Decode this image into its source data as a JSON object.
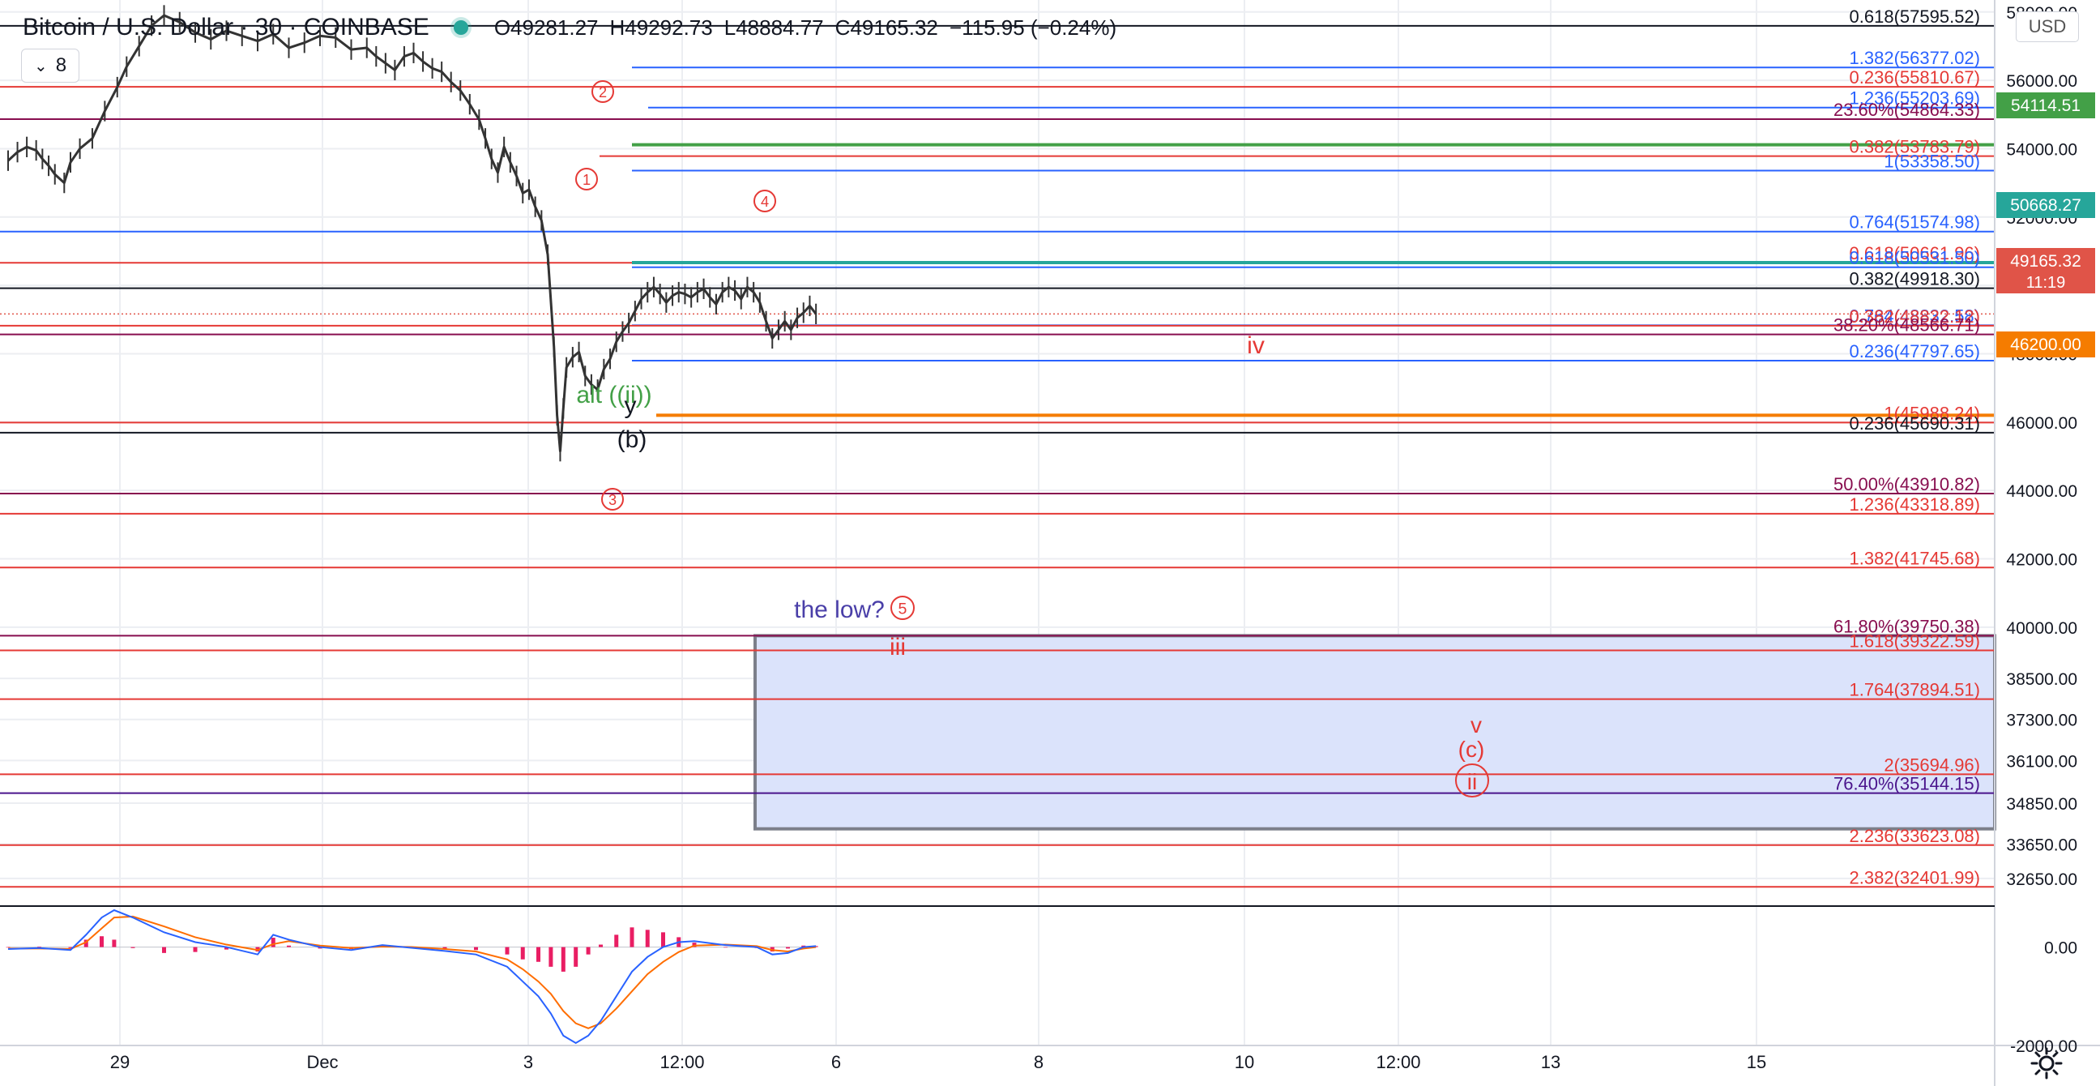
{
  "header": {
    "symbol": "Bitcoin / U.S. Dollar · 30 · COINBASE",
    "open_label": "O",
    "open": "49281.27",
    "high_label": "H",
    "high": "49292.73",
    "low_label": "L",
    "low": "48884.77",
    "close_label": "C",
    "close": "49165.32",
    "change": "−115.95 (−0.24%)",
    "collapse_count": "8"
  },
  "currency": "USD",
  "colors": {
    "red": "#e53935",
    "blue": "#2962ff",
    "maroon": "#880e4f",
    "purple": "#4a148c",
    "black": "#131722",
    "green": "#43a047",
    "orange": "#f57c00",
    "teal": "#26a69a",
    "zone_fill": "#dbe3fb",
    "candle": "#333333",
    "macd": "#2962ff",
    "signal": "#ff6d00",
    "hist": "#e91e63"
  },
  "chart_data": {
    "type": "line",
    "title": "Bitcoin / U.S. Dollar · 30 · COINBASE",
    "ylim": [
      31840,
      58350
    ],
    "y_ticks": [
      58000,
      56000,
      54000,
      52000,
      50000,
      48000,
      46000,
      44000,
      42000,
      40000,
      38500,
      37300,
      36100,
      34850,
      33650,
      32650
    ],
    "x_ticks": [
      "29",
      "Dec",
      "3",
      "12:00",
      "6",
      "8",
      "10",
      "12:00",
      "13",
      "15"
    ],
    "price_markers": [
      {
        "value": "54114.51",
        "color": "#43a047"
      },
      {
        "value": "50668.27",
        "color": "#26a69a"
      },
      {
        "value": "49165.32",
        "sub": "11:19",
        "color": "#e05448"
      },
      {
        "value": "46200.00",
        "color": "#f57c00"
      }
    ],
    "fib_levels": [
      {
        "label": "0.618(57595.52)",
        "price": 57595.52,
        "color": "#131722"
      },
      {
        "label": "1.382(56377.02)",
        "price": 56377.02,
        "color": "#2962ff"
      },
      {
        "label": "0.236(55810.67)",
        "price": 55810.67,
        "color": "#e53935"
      },
      {
        "label": "1.236(55203.69)",
        "price": 55203.69,
        "color": "#2962ff"
      },
      {
        "label": "23.60%(54864.33)",
        "price": 54864.33,
        "color": "#880e4f"
      },
      {
        "label": "0.382(53783.79)",
        "price": 53783.79,
        "color": "#e53935"
      },
      {
        "label": "1(53358.50)",
        "price": 53358.5,
        "color": "#2962ff"
      },
      {
        "label": "0.764(51574.98)",
        "price": 51574.98,
        "color": "#2962ff"
      },
      {
        "label": "0.618(50661.96)",
        "price": 50661.96,
        "color": "#e53935"
      },
      {
        "label": "0.618(50531.50)",
        "price": 50531.5,
        "color": "#2962ff"
      },
      {
        "label": "0.382(49918.30)",
        "price": 49918.3,
        "color": "#131722"
      },
      {
        "label": "0.764(48832.58)",
        "price": 48832.58,
        "color": "#2962ff"
      },
      {
        "label": "0.382(48822.12)",
        "price": 48822.12,
        "color": "#e53935"
      },
      {
        "label": "38.20%(48566.71)",
        "price": 48566.71,
        "color": "#880e4f"
      },
      {
        "label": "0.236(47797.65)",
        "price": 47797.65,
        "color": "#2962ff"
      },
      {
        "label": "1(45988.24)",
        "price": 45988.24,
        "color": "#e53935"
      },
      {
        "label": "0.236(45690.31)",
        "price": 45690.31,
        "color": "#131722"
      },
      {
        "label": "50.00%(43910.82)",
        "price": 43910.82,
        "color": "#880e4f"
      },
      {
        "label": "1.236(43318.89)",
        "price": 43318.89,
        "color": "#e53935"
      },
      {
        "label": "1.382(41745.68)",
        "price": 41745.68,
        "color": "#e53935"
      },
      {
        "label": "61.80%(39750.38)",
        "price": 39750.38,
        "color": "#880e4f"
      },
      {
        "label": "1.618(39322.59)",
        "price": 39322.59,
        "color": "#e53935"
      },
      {
        "label": "1.764(37894.51)",
        "price": 37894.51,
        "color": "#e53935"
      },
      {
        "label": "2(35694.96)",
        "price": 35694.96,
        "color": "#e53935"
      },
      {
        "label": "76.40%(35144.15)",
        "price": 35144.15,
        "color": "#4a148c"
      },
      {
        "label": "2.236(33623.08)",
        "price": 33623.08,
        "color": "#e53935"
      },
      {
        "label": "2.382(32401.99)",
        "price": 32401.99,
        "color": "#e53935"
      }
    ],
    "annotations": [
      {
        "text": "alt ((ii))",
        "color": "#43a047"
      },
      {
        "text": "y",
        "color": "#131722"
      },
      {
        "text": "(b)",
        "color": "#131722"
      },
      {
        "text": "iv",
        "color": "#e53935"
      },
      {
        "text": "the low?",
        "color": "#4a3fa8"
      },
      {
        "text": "iii",
        "color": "#e53935"
      },
      {
        "text": "v",
        "color": "#e53935"
      },
      {
        "text": "(c)",
        "color": "#e53935"
      }
    ],
    "wave_circles": [
      {
        "text": "1",
        "color": "#e53935"
      },
      {
        "text": "2",
        "color": "#e53935"
      },
      {
        "text": "3",
        "color": "#e53935"
      },
      {
        "text": "4",
        "color": "#e53935"
      },
      {
        "text": "5",
        "color": "#e53935"
      },
      {
        "text": "ii",
        "color": "#e53935"
      }
    ],
    "target_zone": {
      "top": 39750.38,
      "bottom": 34100
    },
    "price_series": [
      [
        0,
        53650
      ],
      [
        3,
        53900
      ],
      [
        6,
        54050
      ],
      [
        9,
        53950
      ],
      [
        11,
        53700
      ],
      [
        13,
        53500
      ],
      [
        15,
        53250
      ],
      [
        18,
        53000
      ],
      [
        20,
        53600
      ],
      [
        23,
        54000
      ],
      [
        27,
        54300
      ],
      [
        31,
        55100
      ],
      [
        35,
        55800
      ],
      [
        38,
        56400
      ],
      [
        42,
        57000
      ],
      [
        46,
        57600
      ],
      [
        50,
        57900
      ],
      [
        55,
        57700
      ],
      [
        60,
        57400
      ],
      [
        65,
        57200
      ],
      [
        70,
        57450
      ],
      [
        75,
        57300
      ],
      [
        80,
        57150
      ],
      [
        85,
        57350
      ],
      [
        90,
        56950
      ],
      [
        95,
        57100
      ],
      [
        100,
        57300
      ],
      [
        105,
        57250
      ],
      [
        110,
        56900
      ],
      [
        115,
        56950
      ],
      [
        118,
        56700
      ],
      [
        121,
        56500
      ],
      [
        124,
        56300
      ],
      [
        127,
        56700
      ],
      [
        130,
        56800
      ],
      [
        133,
        56550
      ],
      [
        136,
        56350
      ],
      [
        139,
        56250
      ],
      [
        142,
        55950
      ],
      [
        145,
        55700
      ],
      [
        148,
        55300
      ],
      [
        151,
        54850
      ],
      [
        153,
        54300
      ],
      [
        155,
        53700
      ],
      [
        157,
        53300
      ],
      [
        159,
        54050
      ],
      [
        161,
        53600
      ],
      [
        163,
        53200
      ],
      [
        165,
        52700
      ],
      [
        167,
        52800
      ],
      [
        169,
        52300
      ],
      [
        171,
        51900
      ],
      [
        173,
        50900
      ],
      [
        175,
        48200
      ],
      [
        176,
        46200
      ],
      [
        177,
        45150
      ],
      [
        178,
        46400
      ],
      [
        179,
        47600
      ],
      [
        181,
        47900
      ],
      [
        183,
        48050
      ],
      [
        185,
        47350
      ],
      [
        187,
        47100
      ],
      [
        189,
        46950
      ],
      [
        191,
        47550
      ],
      [
        193,
        47850
      ],
      [
        195,
        48350
      ],
      [
        197,
        48650
      ],
      [
        199,
        48900
      ],
      [
        201,
        49250
      ],
      [
        203,
        49600
      ],
      [
        205,
        49800
      ],
      [
        207,
        49950
      ],
      [
        209,
        49750
      ],
      [
        211,
        49500
      ],
      [
        213,
        49700
      ],
      [
        215,
        49800
      ],
      [
        217,
        49750
      ],
      [
        219,
        49650
      ],
      [
        221,
        49800
      ],
      [
        223,
        49900
      ],
      [
        225,
        49650
      ],
      [
        227,
        49450
      ],
      [
        229,
        49800
      ],
      [
        231,
        49950
      ],
      [
        233,
        49850
      ],
      [
        235,
        49600
      ],
      [
        237,
        49950
      ],
      [
        239,
        49800
      ],
      [
        241,
        49500
      ],
      [
        243,
        48950
      ],
      [
        245,
        48450
      ],
      [
        247,
        48700
      ],
      [
        249,
        48950
      ],
      [
        251,
        48700
      ],
      [
        253,
        49050
      ],
      [
        255,
        49200
      ],
      [
        257,
        49400
      ],
      [
        259,
        49165
      ]
    ],
    "macd": {
      "ylim": [
        -2000,
        800
      ],
      "y_ticks": [
        0.0,
        -2000.0
      ],
      "macd_line": [
        [
          0,
          -40
        ],
        [
          10,
          -20
        ],
        [
          20,
          -60
        ],
        [
          25,
          250
        ],
        [
          30,
          600
        ],
        [
          34,
          750
        ],
        [
          40,
          600
        ],
        [
          50,
          300
        ],
        [
          60,
          100
        ],
        [
          70,
          0
        ],
        [
          80,
          -150
        ],
        [
          85,
          250
        ],
        [
          90,
          150
        ],
        [
          100,
          0
        ],
        [
          110,
          -60
        ],
        [
          120,
          40
        ],
        [
          130,
          -20
        ],
        [
          140,
          -80
        ],
        [
          150,
          -150
        ],
        [
          160,
          -400
        ],
        [
          165,
          -700
        ],
        [
          170,
          -1000
        ],
        [
          174,
          -1350
        ],
        [
          178,
          -1800
        ],
        [
          182,
          -1950
        ],
        [
          186,
          -1800
        ],
        [
          190,
          -1500
        ],
        [
          195,
          -1000
        ],
        [
          200,
          -500
        ],
        [
          205,
          -200
        ],
        [
          210,
          0
        ],
        [
          215,
          100
        ],
        [
          220,
          120
        ],
        [
          230,
          40
        ],
        [
          240,
          0
        ],
        [
          245,
          -150
        ],
        [
          250,
          -120
        ],
        [
          255,
          0
        ],
        [
          259,
          20
        ]
      ],
      "signal_line": [
        [
          0,
          -30
        ],
        [
          10,
          -30
        ],
        [
          20,
          -40
        ],
        [
          25,
          100
        ],
        [
          30,
          380
        ],
        [
          34,
          600
        ],
        [
          40,
          620
        ],
        [
          50,
          420
        ],
        [
          60,
          200
        ],
        [
          70,
          50
        ],
        [
          80,
          -60
        ],
        [
          85,
          60
        ],
        [
          90,
          120
        ],
        [
          100,
          30
        ],
        [
          110,
          -20
        ],
        [
          120,
          10
        ],
        [
          130,
          0
        ],
        [
          140,
          -40
        ],
        [
          150,
          -90
        ],
        [
          160,
          -250
        ],
        [
          165,
          -450
        ],
        [
          170,
          -700
        ],
        [
          174,
          -950
        ],
        [
          178,
          -1300
        ],
        [
          182,
          -1550
        ],
        [
          186,
          -1650
        ],
        [
          190,
          -1550
        ],
        [
          195,
          -1250
        ],
        [
          200,
          -900
        ],
        [
          205,
          -550
        ],
        [
          210,
          -300
        ],
        [
          215,
          -100
        ],
        [
          220,
          30
        ],
        [
          230,
          50
        ],
        [
          240,
          20
        ],
        [
          245,
          -60
        ],
        [
          250,
          -90
        ],
        [
          255,
          -30
        ],
        [
          259,
          0
        ]
      ]
    }
  }
}
